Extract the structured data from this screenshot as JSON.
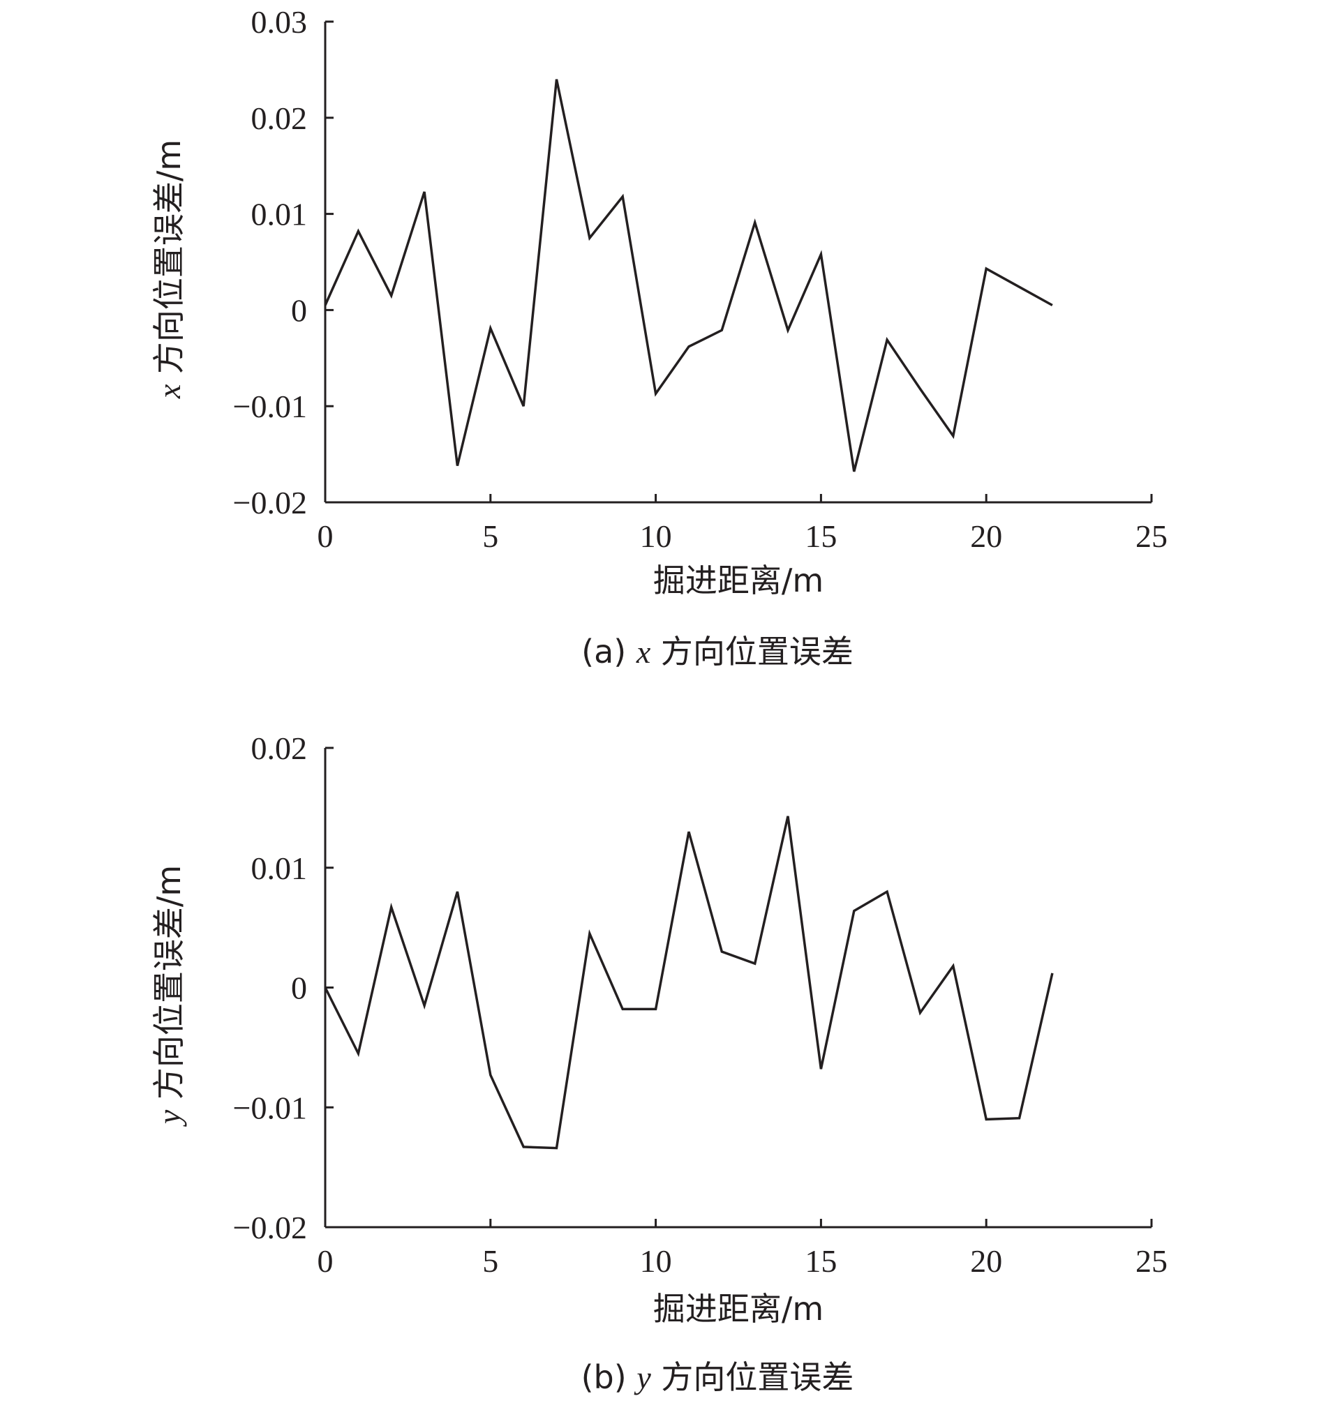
{
  "chart_data": [
    {
      "type": "line",
      "ylabel_var": "x",
      "ylabel_text": " 方向位置误差/m",
      "xlabel": "掘进距离/m",
      "caption_prefix": "(a)",
      "caption_var": "x",
      "caption_text": " 方向位置误差",
      "xlim": [
        0,
        25
      ],
      "ylim": [
        -0.02,
        0.03
      ],
      "x_ticks": [
        "0",
        "5",
        "10",
        "15",
        "20",
        "25"
      ],
      "y_ticks": [
        "0.03",
        "0.02",
        "0.01",
        "0",
        "−0.01",
        "−0.02"
      ],
      "series": [
        {
          "x": [
            0,
            1,
            2,
            3,
            4,
            5,
            6,
            7,
            8,
            9,
            10,
            11,
            12,
            13,
            14,
            15,
            16,
            17,
            18,
            19,
            20,
            21,
            22
          ],
          "values": [
            0.0005,
            0.0082,
            0.0015,
            0.0123,
            -0.0162,
            -0.0019,
            -0.01,
            0.024,
            0.0075,
            0.0118,
            -0.0087,
            -0.0038,
            -0.0021,
            0.0091,
            -0.0021,
            0.0058,
            -0.0168,
            -0.0031,
            -0.0082,
            -0.0131,
            0.0043,
            0.0024,
            0.0005
          ]
        }
      ]
    },
    {
      "type": "line",
      "ylabel_var": "y",
      "ylabel_text": " 方向位置误差/m",
      "xlabel": "掘进距离/m",
      "caption_prefix": "(b)",
      "caption_var": "y",
      "caption_text": " 方向位置误差",
      "xlim": [
        0,
        25
      ],
      "ylim": [
        -0.02,
        0.02
      ],
      "x_ticks": [
        "0",
        "5",
        "10",
        "15",
        "20",
        "25"
      ],
      "y_ticks": [
        "0.02",
        "0.01",
        "0",
        "−0.01",
        "−0.02"
      ],
      "series": [
        {
          "x": [
            0,
            1,
            2,
            3,
            4,
            5,
            6,
            7,
            8,
            9,
            10,
            11,
            12,
            13,
            14,
            15,
            16,
            17,
            18,
            19,
            20,
            21,
            22
          ],
          "values": [
            0.0,
            -0.0055,
            0.0067,
            -0.0015,
            0.008,
            -0.0073,
            -0.0133,
            -0.0134,
            0.0045,
            -0.0018,
            -0.0018,
            0.013,
            0.003,
            0.002,
            0.0143,
            -0.0068,
            0.0064,
            0.008,
            -0.0021,
            0.0018,
            -0.011,
            -0.0109,
            0.0012
          ]
        }
      ]
    }
  ]
}
